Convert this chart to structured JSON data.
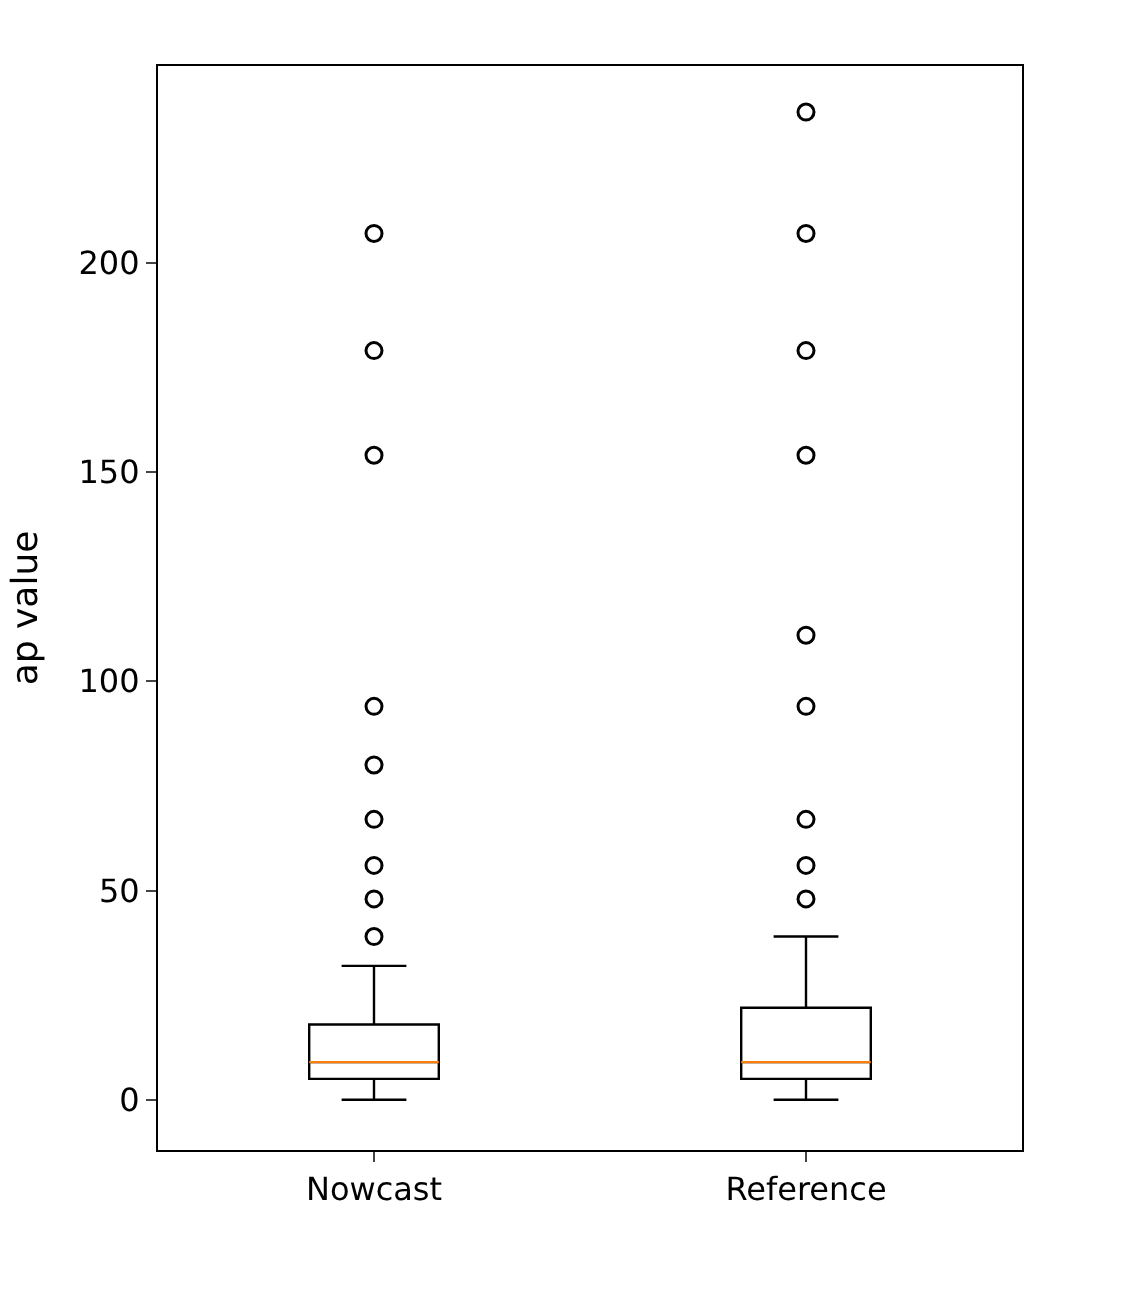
{
  "chart_data": {
    "type": "box",
    "ylabel": "ap value",
    "categories": [
      "Nowcast",
      "Reference"
    ],
    "boxes": [
      {
        "low": 0,
        "q1": 5,
        "median": 9,
        "q3": 18,
        "high": 32,
        "outliers": [
          39,
          48,
          56,
          67,
          80,
          94,
          154,
          179,
          207
        ]
      },
      {
        "low": 0,
        "q1": 5,
        "median": 9,
        "q3": 22,
        "high": 39,
        "outliers": [
          48,
          56,
          67,
          94,
          111,
          154,
          179,
          207,
          236
        ]
      }
    ],
    "ylim": [
      -12,
      247
    ],
    "yticks": [
      0,
      50,
      100,
      150,
      200
    ],
    "marker": "circle"
  }
}
